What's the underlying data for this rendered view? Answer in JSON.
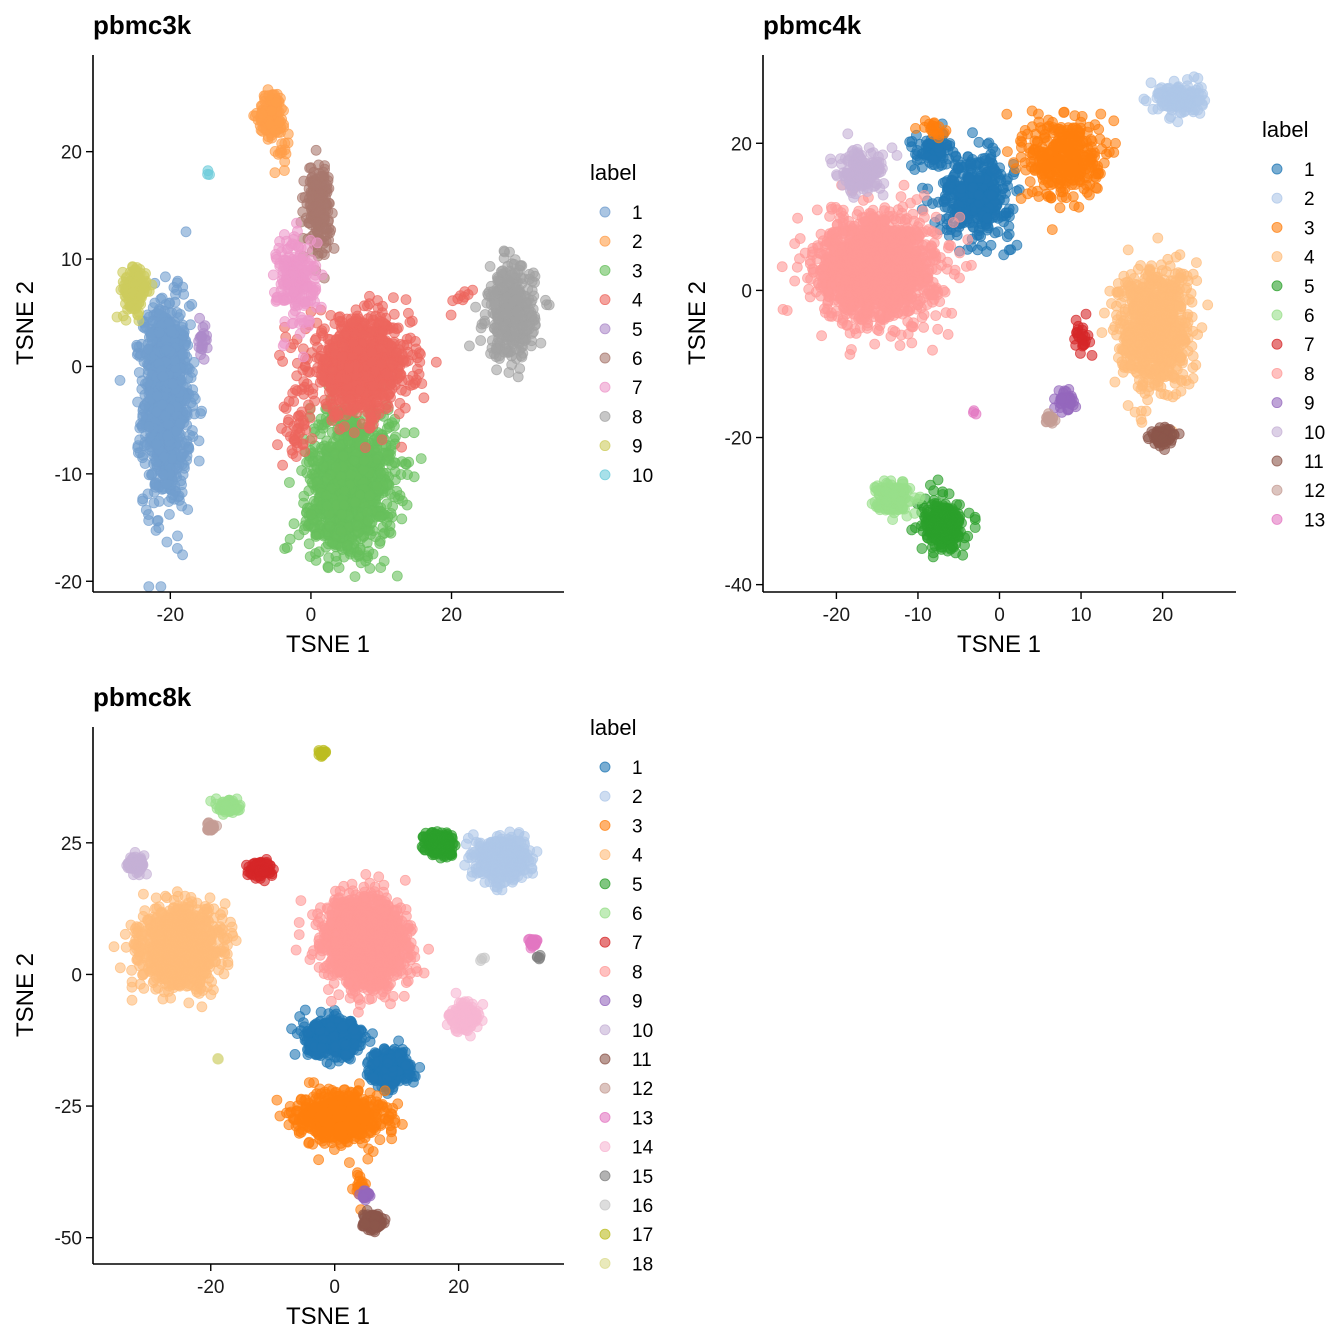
{
  "chart_data": [
    {
      "type": "scatter",
      "title": "pbmc3k",
      "xlabel": "TSNE 1",
      "ylabel": "TSNE 2",
      "xlim": [
        -31,
        36
      ],
      "ylim": [
        -21,
        29
      ],
      "xticks": [
        "-20",
        "0",
        "20"
      ],
      "xtick_values": [
        -20,
        0,
        20
      ],
      "yticks": [
        "20",
        "10",
        "0",
        "-10",
        "-20"
      ],
      "ytick_values": [
        20,
        10,
        0,
        -10,
        -20
      ],
      "legend_title": "label",
      "legend_position": "right",
      "series": [
        {
          "name": "1",
          "color": "#729ece",
          "clusters": [
            [
              -20.5,
              -3.5,
              3.0,
              8.5,
              900
            ],
            [
              -21,
              1.5,
              2.2,
              3.5,
              150
            ]
          ]
        },
        {
          "name": "2",
          "color": "#ff9e4a",
          "clusters": [
            [
              -5.5,
              23.5,
              1.8,
              2.0,
              120
            ],
            [
              -4,
              20,
              1.0,
              1.5,
              15
            ]
          ]
        },
        {
          "name": "3",
          "color": "#67bf5c",
          "clusters": [
            [
              6,
              -10,
              5.5,
              6.0,
              900
            ],
            [
              4,
              -14,
              5.0,
              3.0,
              200
            ]
          ]
        },
        {
          "name": "4",
          "color": "#ed665d",
          "clusters": [
            [
              7,
              0,
              6.5,
              4.0,
              900
            ],
            [
              -2,
              -6,
              1.5,
              2.5,
              40
            ],
            [
              22,
              6.5,
              1.5,
              1.0,
              8
            ]
          ]
        },
        {
          "name": "5",
          "color": "#ad8bc9",
          "clusters": [
            [
              -15.5,
              2.5,
              0.7,
              1.2,
              20
            ]
          ]
        },
        {
          "name": "6",
          "color": "#a8786e",
          "clusters": [
            [
              1,
              15,
              1.6,
              3.5,
              200
            ]
          ]
        },
        {
          "name": "7",
          "color": "#ed97ca",
          "clusters": [
            [
              -2,
              8,
              2.5,
              4.0,
              200
            ]
          ]
        },
        {
          "name": "8",
          "color": "#a2a2a2",
          "clusters": [
            [
              28.5,
              5,
              3.0,
              3.8,
              400
            ]
          ]
        },
        {
          "name": "9",
          "color": "#cdcc5d",
          "clusters": [
            [
              -25,
              7,
              1.8,
              2.2,
              120
            ]
          ]
        },
        {
          "name": "10",
          "color": "#6dccda",
          "clusters": [
            [
              -14.5,
              18,
              0.3,
              0.3,
              3
            ]
          ]
        }
      ]
    },
    {
      "type": "scatter",
      "title": "pbmc4k",
      "xlabel": "TSNE 1",
      "ylabel": "TSNE 2",
      "xlim": [
        -29,
        29
      ],
      "ylim": [
        -41,
        32
      ],
      "xticks": [
        "-20",
        "-10",
        "0",
        "10",
        "20"
      ],
      "xtick_values": [
        -20,
        -10,
        0,
        10,
        20
      ],
      "yticks": [
        "20",
        "0",
        "-20",
        "-40"
      ],
      "ytick_values": [
        20,
        0,
        -20,
        -40
      ],
      "legend_title": "label",
      "legend_position": "right",
      "series": [
        {
          "name": "1",
          "color": "#1f77b4",
          "clusters": [
            [
              -3,
              13,
              4.0,
              5.0,
              400
            ],
            [
              -8,
              19,
              2.5,
              2.0,
              80
            ]
          ]
        },
        {
          "name": "2",
          "color": "#aec7e8",
          "clusters": [
            [
              22,
              26,
              2.5,
              2.0,
              150
            ]
          ]
        },
        {
          "name": "3",
          "color": "#ff7f0e",
          "clusters": [
            [
              8,
              18,
              4.0,
              5.0,
              400
            ],
            [
              -8,
              22,
              1.5,
              0.8,
              20
            ]
          ]
        },
        {
          "name": "4",
          "color": "#ffbb78",
          "clusters": [
            [
              19,
              -5,
              4.0,
              7.5,
              800
            ]
          ]
        },
        {
          "name": "5",
          "color": "#2ca02c",
          "clusters": [
            [
              -7,
              -32,
              2.3,
              3.0,
              300
            ]
          ]
        },
        {
          "name": "6",
          "color": "#98df8a",
          "clusters": [
            [
              -13,
              -28,
              1.8,
              2.0,
              150
            ]
          ]
        },
        {
          "name": "7",
          "color": "#d62728",
          "clusters": [
            [
              10,
              -6,
              0.9,
              1.8,
              25
            ]
          ]
        },
        {
          "name": "8",
          "color": "#ff9896",
          "clusters": [
            [
              -15,
              3,
              6.5,
              6.5,
              1500
            ]
          ]
        },
        {
          "name": "9",
          "color": "#9467bd",
          "clusters": [
            [
              8,
              -15,
              1.2,
              1.2,
              40
            ]
          ]
        },
        {
          "name": "10",
          "color": "#c5b0d5",
          "clusters": [
            [
              -17,
              16,
              2.5,
              2.5,
              180
            ]
          ]
        },
        {
          "name": "11",
          "color": "#8c564b",
          "clusters": [
            [
              20,
              -20,
              1.2,
              1.2,
              60
            ]
          ]
        },
        {
          "name": "12",
          "color": "#c49c94",
          "clusters": [
            [
              6,
              -17.5,
              1.0,
              0.7,
              20
            ]
          ]
        },
        {
          "name": "13",
          "color": "#e377c2",
          "clusters": [
            [
              -3,
              -16.5,
              0.4,
              0.3,
              3
            ]
          ]
        }
      ]
    },
    {
      "type": "scatter",
      "title": "pbmc8k",
      "xlabel": "TSNE 1",
      "ylabel": "TSNE 2",
      "xlim": [
        -39,
        37
      ],
      "ylim": [
        -55,
        47
      ],
      "xticks": [
        "-20",
        "0",
        "20"
      ],
      "xtick_values": [
        -20,
        0,
        20
      ],
      "yticks": [
        "25",
        "0",
        "-25",
        "-50"
      ],
      "ytick_values": [
        25,
        0,
        -25,
        -50
      ],
      "legend_title": "label",
      "legend_position": "right",
      "series": [
        {
          "name": "1",
          "color": "#1f77b4",
          "clusters": [
            [
              0,
              -12,
              4.0,
              3.0,
              500
            ],
            [
              9,
              -18,
              3.0,
              3.0,
              300
            ]
          ]
        },
        {
          "name": "2",
          "color": "#aec7e8",
          "clusters": [
            [
              27,
              22,
              3.5,
              3.5,
              500
            ]
          ]
        },
        {
          "name": "3",
          "color": "#ff7f0e",
          "clusters": [
            [
              1,
              -27,
              6.0,
              4.0,
              700
            ],
            [
              4,
              -40,
              0.8,
              2.5,
              20
            ]
          ]
        },
        {
          "name": "4",
          "color": "#ffbb78",
          "clusters": [
            [
              -25,
              5,
              5.5,
              6.5,
              1200
            ]
          ]
        },
        {
          "name": "5",
          "color": "#2ca02c",
          "clusters": [
            [
              17,
              25,
              2.0,
              2.0,
              200
            ]
          ]
        },
        {
          "name": "6",
          "color": "#98df8a",
          "clusters": [
            [
              -17,
              32,
              1.5,
              1.2,
              80
            ]
          ]
        },
        {
          "name": "7",
          "color": "#d62728",
          "clusters": [
            [
              -12,
              20,
              1.6,
              1.3,
              100
            ]
          ]
        },
        {
          "name": "8",
          "color": "#ff9896",
          "clusters": [
            [
              5,
              6,
              5.5,
              7.0,
              2000
            ]
          ]
        },
        {
          "name": "9",
          "color": "#9467bd",
          "clusters": [
            [
              5,
              -42,
              0.6,
              0.8,
              20
            ]
          ]
        },
        {
          "name": "10",
          "color": "#c5b0d5",
          "clusters": [
            [
              -32,
              21,
              1.2,
              1.3,
              60
            ]
          ]
        },
        {
          "name": "11",
          "color": "#8c564b",
          "clusters": [
            [
              6,
              -47,
              1.4,
              1.3,
              120
            ]
          ]
        },
        {
          "name": "12",
          "color": "#c49c94",
          "clusters": [
            [
              -20,
              28,
              0.8,
              0.8,
              25
            ]
          ]
        },
        {
          "name": "13",
          "color": "#e377c2",
          "clusters": [
            [
              32,
              6,
              0.7,
              0.6,
              30
            ]
          ]
        },
        {
          "name": "14",
          "color": "#f7b6d2",
          "clusters": [
            [
              21,
              -8,
              2.0,
              2.5,
              150
            ]
          ]
        },
        {
          "name": "15",
          "color": "#7f7f7f",
          "clusters": [
            [
              33,
              3,
              0.3,
              0.5,
              5
            ]
          ]
        },
        {
          "name": "16",
          "color": "#c7c7c7",
          "clusters": [
            [
              24,
              3,
              0.4,
              0.4,
              3
            ]
          ]
        },
        {
          "name": "17",
          "color": "#bcbd22",
          "clusters": [
            [
              -2,
              42,
              0.5,
              0.6,
              20
            ]
          ]
        },
        {
          "name": "18",
          "color": "#dbdb8d",
          "clusters": [
            [
              -19,
              -16,
              0.3,
              0.3,
              3
            ]
          ]
        }
      ]
    }
  ]
}
